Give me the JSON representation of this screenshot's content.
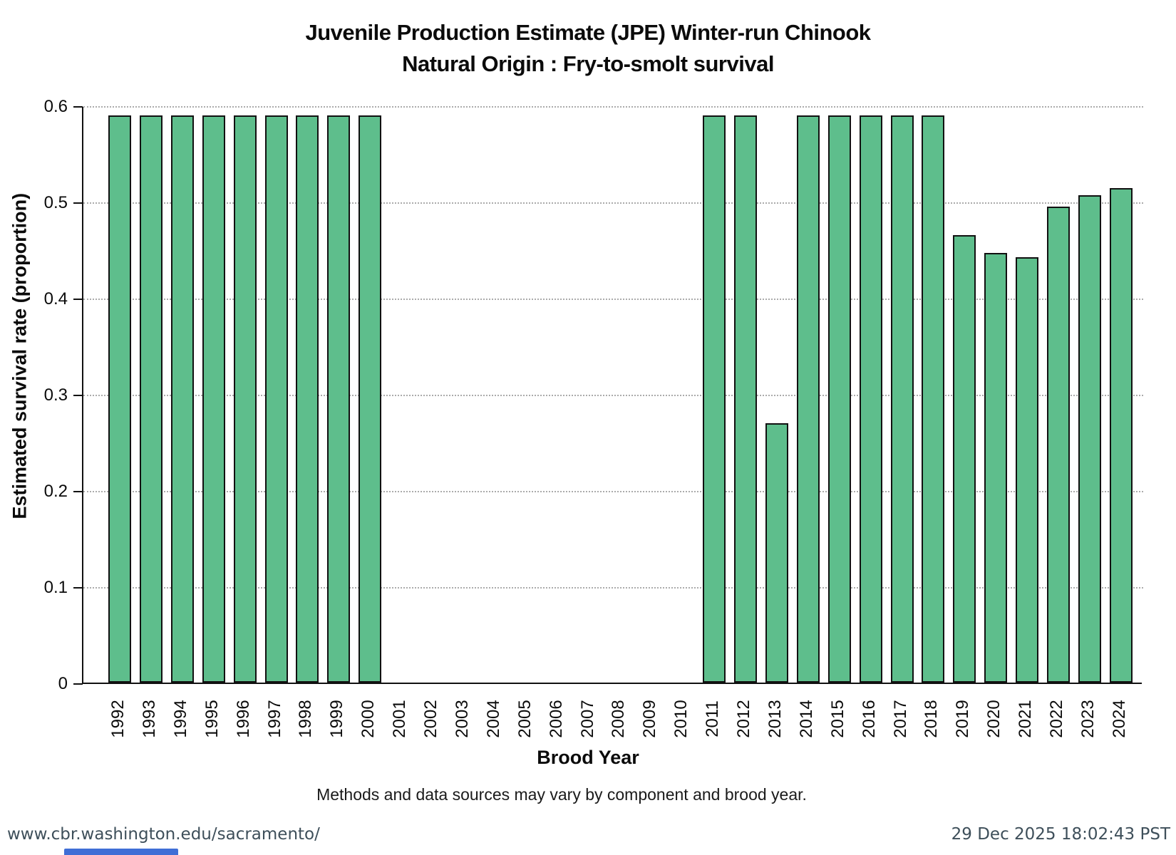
{
  "page": {
    "note": "Methods and data sources may vary by component and brood year.",
    "footer_left": "www.cbr.washington.edu/sacramento/",
    "footer_right": "29 Dec 2025 18:02:43 PST"
  },
  "chart_data": {
    "type": "bar",
    "title": "Juvenile Production Estimate (JPE) Winter-run Chinook",
    "subtitle": "Natural Origin : Fry-to-smolt survival",
    "xlabel": "Brood Year",
    "ylabel": "Estimated survival rate (proportion)",
    "categories": [
      "1992",
      "1993",
      "1994",
      "1995",
      "1996",
      "1997",
      "1998",
      "1999",
      "2000",
      "2001",
      "2002",
      "2003",
      "2004",
      "2005",
      "2006",
      "2007",
      "2008",
      "2009",
      "2010",
      "2011",
      "2012",
      "2013",
      "2014",
      "2015",
      "2016",
      "2017",
      "2018",
      "2019",
      "2020",
      "2021",
      "2022",
      "2023",
      "2024"
    ],
    "values": [
      0.59,
      0.59,
      0.59,
      0.59,
      0.59,
      0.59,
      0.59,
      0.59,
      0.59,
      null,
      null,
      null,
      null,
      null,
      null,
      null,
      null,
      null,
      null,
      0.59,
      0.59,
      0.27,
      0.59,
      0.59,
      0.59,
      0.59,
      0.59,
      0.465,
      0.447,
      0.442,
      0.495,
      0.507,
      0.514
    ],
    "ylim": [
      0,
      0.6
    ],
    "yticks": [
      {
        "v": 0.0,
        "label": "0"
      },
      {
        "v": 0.1,
        "label": "0.1"
      },
      {
        "v": 0.2,
        "label": "0.2"
      },
      {
        "v": 0.3,
        "label": "0.3"
      },
      {
        "v": 0.4,
        "label": "0.4"
      },
      {
        "v": 0.5,
        "label": "0.5"
      },
      {
        "v": 0.6,
        "label": "0.6"
      }
    ],
    "grid": "horizontal-dotted",
    "legend": "none",
    "colors": {
      "bar_fill": "#5EBE8C",
      "bar_border": "#111111",
      "gridline": "#ABABAB",
      "footer_text": "#3E4F5A",
      "partial_element_blue": "#3F6ED6"
    }
  }
}
